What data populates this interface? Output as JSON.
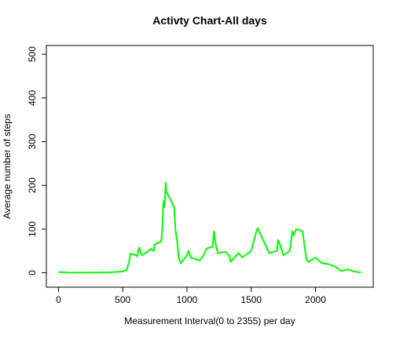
{
  "chart_data": {
    "type": "line",
    "title": "Activty Chart-All days",
    "xlabel": "Measurement Interval(0 to 2355) per day",
    "ylabel": "Average number of steps",
    "x": [
      0,
      100,
      200,
      300,
      400,
      450,
      500,
      530,
      550,
      560,
      600,
      615,
      620,
      630,
      640,
      650,
      700,
      720,
      740,
      750,
      800,
      810,
      815,
      820,
      825,
      830,
      835,
      840,
      850,
      900,
      910,
      925,
      935,
      950,
      1000,
      1010,
      1030,
      1100,
      1130,
      1150,
      1200,
      1210,
      1220,
      1240,
      1300,
      1330,
      1340,
      1400,
      1430,
      1500,
      1540,
      1550,
      1600,
      1640,
      1700,
      1710,
      1730,
      1750,
      1800,
      1820,
      1830,
      1850,
      1900,
      1915,
      1930,
      1945,
      2000,
      2050,
      2100,
      2150,
      2200,
      2250,
      2300,
      2320,
      2355
    ],
    "series": [
      {
        "name": "Average number of steps",
        "color": "#00ff00",
        "values": [
          1.7,
          0.3,
          0.5,
          0.5,
          1.2,
          2,
          3,
          6,
          25,
          44,
          40,
          38,
          50,
          58,
          45,
          40,
          50,
          55,
          50,
          65,
          72,
          110,
          155,
          165,
          150,
          175,
          206,
          185,
          180,
          150,
          100,
          70,
          35,
          22,
          40,
          50,
          35,
          28,
          40,
          55,
          60,
          95,
          70,
          45,
          48,
          38,
          25,
          45,
          35,
          50,
          95,
          102,
          70,
          45,
          50,
          75,
          60,
          40,
          50,
          95,
          85,
          100,
          95,
          60,
          30,
          25,
          35,
          22,
          20,
          15,
          4,
          8,
          3,
          2,
          1
        ]
      }
    ],
    "xlim": [
      -94.2,
      2449.2
    ],
    "ylim": [
      -33,
      520
    ],
    "xticks": [
      0,
      500,
      1000,
      1500,
      2000
    ],
    "yticks": [
      0,
      100,
      200,
      300,
      400,
      500
    ]
  }
}
